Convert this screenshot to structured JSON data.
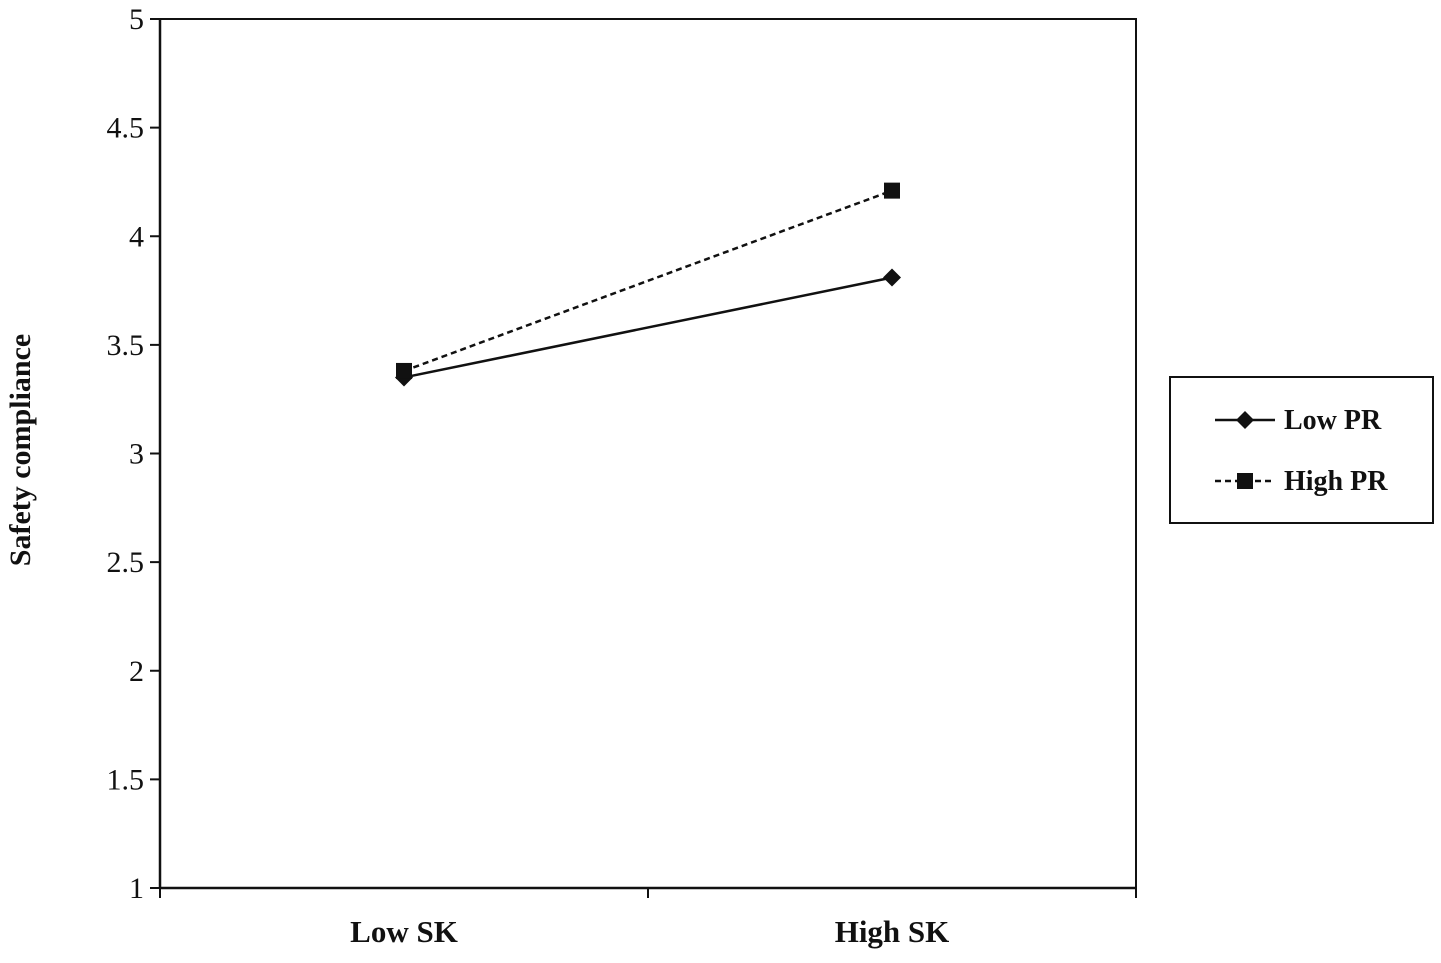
{
  "chart_data": {
    "type": "line",
    "categories": [
      "Low SK",
      "High SK"
    ],
    "series": [
      {
        "name": "Low PR",
        "values": [
          3.35,
          3.81
        ],
        "marker": "diamond",
        "line_style": "solid"
      },
      {
        "name": "High PR",
        "values": [
          3.38,
          4.21
        ],
        "marker": "square",
        "line_style": "dashed"
      }
    ],
    "title": "",
    "xlabel": "",
    "ylabel": "Safety compliance",
    "ylim": [
      1,
      5
    ],
    "yticks": [
      "1",
      "1.5",
      "2",
      "2.5",
      "3",
      "3.5",
      "4",
      "4.5",
      "5"
    ],
    "grid": false,
    "legend_position": "right",
    "colors": {
      "line": "#111111",
      "background": "#ffffff"
    }
  }
}
